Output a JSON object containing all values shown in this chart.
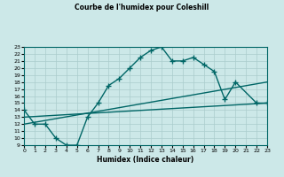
{
  "title": "Courbe de l'humidex pour Coleshill",
  "xlabel": "Humidex (Indice chaleur)",
  "bg_color": "#cce8e8",
  "line_color": "#006666",
  "grid_color": "#aacccc",
  "xlim": [
    0,
    23
  ],
  "ylim": [
    9,
    23
  ],
  "line1_x": [
    0,
    1,
    2,
    3,
    4,
    5,
    6,
    7,
    8,
    9,
    10,
    11,
    12,
    13,
    14,
    15,
    16,
    17,
    18,
    19,
    20,
    22,
    23
  ],
  "line1_y": [
    14,
    12,
    12,
    10,
    9,
    9,
    13,
    15,
    17.5,
    18.5,
    20,
    21.5,
    22.5,
    23,
    21,
    21,
    21.5,
    20.5,
    19.5,
    15.5,
    18,
    15,
    15
  ],
  "line2_x": [
    0,
    23
  ],
  "line2_y": [
    13,
    15
  ],
  "line3_x": [
    0,
    23
  ],
  "line3_y": [
    12,
    18
  ],
  "marker": "+",
  "markersize": 4,
  "linewidth": 1.0
}
